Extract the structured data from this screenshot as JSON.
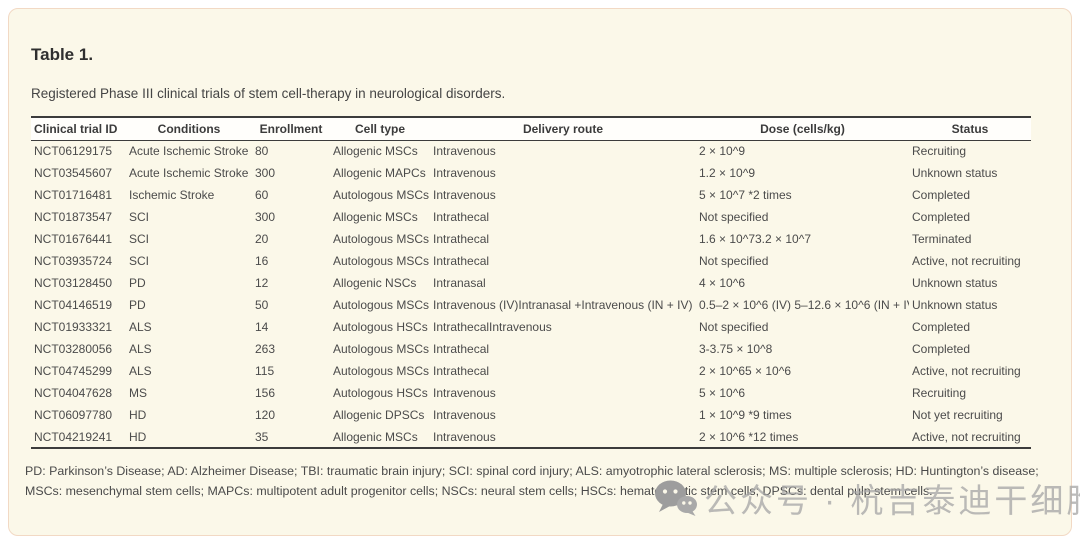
{
  "card": {
    "title": "Table 1.",
    "subtitle": "Registered Phase III clinical trials of stem cell-therapy in neurological disorders."
  },
  "table": {
    "columns": [
      "Clinical trial ID",
      "Conditions",
      "Enrollment",
      "Cell type",
      "Delivery route",
      "Dose (cells/kg)",
      "Status"
    ],
    "rows": [
      [
        "NCT06129175",
        "Acute Ischemic Stroke",
        "80",
        "Allogenic MSCs",
        "Intravenous",
        "2 × 10^9",
        "Recruiting"
      ],
      [
        "NCT03545607",
        "Acute Ischemic Stroke",
        "300",
        "Allogenic MAPCs",
        "Intravenous",
        "1.2 × 10^9",
        "Unknown status"
      ],
      [
        "NCT01716481",
        "Ischemic Stroke",
        "60",
        "Autologous MSCs",
        "Intravenous",
        "5 × 10^7 *2 times",
        "Completed"
      ],
      [
        "NCT01873547",
        "SCI",
        "300",
        "Allogenic MSCs",
        "Intrathecal",
        "Not specified",
        "Completed"
      ],
      [
        "NCT01676441",
        "SCI",
        "20",
        "Autologous MSCs",
        "Intrathecal",
        "1.6 × 10^73.2 × 10^7",
        "Terminated"
      ],
      [
        "NCT03935724",
        "SCI",
        "16",
        "Autologous MSCs",
        "Intrathecal",
        "Not specified",
        "Active, not recruiting"
      ],
      [
        "NCT03128450",
        "PD",
        "12",
        "Allogenic NSCs",
        "Intranasal",
        "4 × 10^6",
        "Unknown status"
      ],
      [
        "NCT04146519",
        "PD",
        "50",
        "Autologous MSCs",
        "Intravenous (IV)Intranasal +Intravenous (IN + IV)",
        "0.5–2 × 10^6 (IV) 5–12.6 × 10^6 (IN + IV)",
        "Unknown status"
      ],
      [
        "NCT01933321",
        "ALS",
        "14",
        "Autologous HSCs",
        "IntrathecalIntravenous",
        "Not specified",
        "Completed"
      ],
      [
        "NCT03280056",
        "ALS",
        "263",
        "Autologous MSCs",
        "Intrathecal",
        "3-3.75 × 10^8",
        "Completed"
      ],
      [
        "NCT04745299",
        "ALS",
        "115",
        "Autologous MSCs",
        "Intrathecal",
        "2 × 10^65 × 10^6",
        "Active, not recruiting"
      ],
      [
        "NCT04047628",
        "MS",
        "156",
        "Autologous HSCs",
        "Intravenous",
        "5 × 10^6",
        "Recruiting"
      ],
      [
        "NCT06097780",
        "HD",
        "120",
        "Allogenic DPSCs",
        "Intravenous",
        "1 × 10^9 *9 times",
        "Not yet recruiting"
      ],
      [
        "NCT04219241",
        "HD",
        "35",
        "Allogenic MSCs",
        "Intravenous",
        "2 × 10^6 *12 times",
        "Active, not recruiting"
      ]
    ]
  },
  "footnote": "PD: Parkinson’s Disease; AD: Alzheimer Disease; TBI: traumatic brain injury; SCI: spinal cord injury; ALS: amyotrophic lateral sclerosis; MS: multiple sclerosis; HD: Huntington’s disease; MSCs: mesenchymal stem cells; MAPCs: multipotent adult progenitor cells; NSCs: neural stem cells; HSCs: hematopoietic stem cells; DPSCs: dental pulp stem cells.",
  "watermark": {
    "icon": "wechat-icon",
    "text": "公众号 · 杭吉泰迪干细胞"
  },
  "colors": {
    "card_background": "#fbf8e9",
    "card_border": "#f2d9c4",
    "header_row_background": "#fffefb",
    "table_rule": "#3c3c3c",
    "body_text": "#4b4b4b",
    "watermark_gray": "#a4a4a4"
  }
}
